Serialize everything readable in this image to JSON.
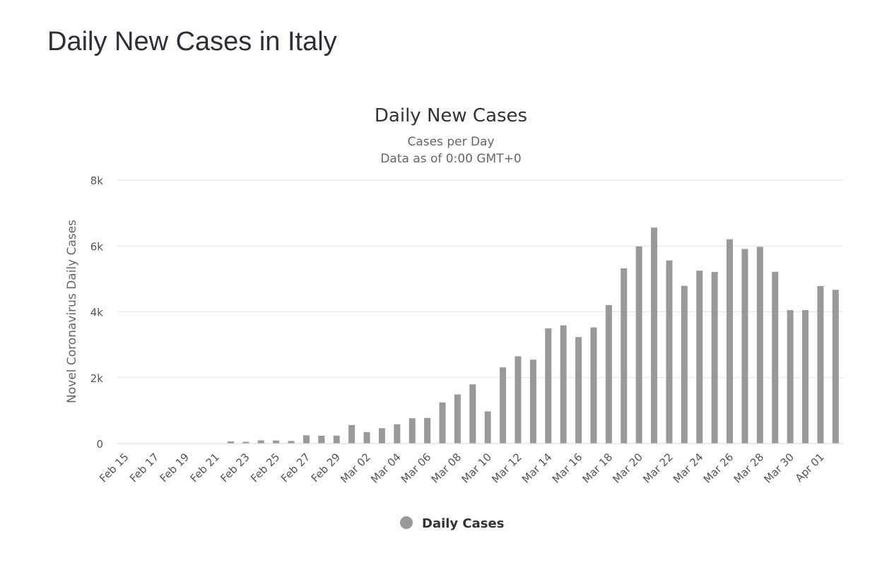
{
  "page": {
    "heading": "Daily New Cases in Italy"
  },
  "chart_data": {
    "type": "bar",
    "title": "Daily New Cases",
    "subtitle": [
      "Cases per Day",
      "Data as of 0:00 GMT+0"
    ],
    "xlabel": "",
    "ylabel": "Novel Coronavirus Daily Cases",
    "ylim": [
      0,
      8000
    ],
    "yticks": [
      0,
      2000,
      4000,
      6000,
      8000
    ],
    "ytick_labels": [
      "0",
      "2k",
      "4k",
      "6k",
      "8k"
    ],
    "grid": true,
    "legend": {
      "position": "bottom-center",
      "color": "#999999"
    },
    "categories": [
      "Feb 15",
      "Feb 16",
      "Feb 17",
      "Feb 18",
      "Feb 19",
      "Feb 20",
      "Feb 21",
      "Feb 22",
      "Feb 23",
      "Feb 24",
      "Feb 25",
      "Feb 26",
      "Feb 27",
      "Feb 28",
      "Feb 29",
      "Mar 01",
      "Mar 02",
      "Mar 03",
      "Mar 04",
      "Mar 05",
      "Mar 06",
      "Mar 07",
      "Mar 08",
      "Mar 09",
      "Mar 10",
      "Mar 11",
      "Mar 12",
      "Mar 13",
      "Mar 14",
      "Mar 15",
      "Mar 16",
      "Mar 17",
      "Mar 18",
      "Mar 19",
      "Mar 20",
      "Mar 21",
      "Mar 22",
      "Mar 23",
      "Mar 24",
      "Mar 25",
      "Mar 26",
      "Mar 27",
      "Mar 28",
      "Mar 29",
      "Mar 30",
      "Mar 31",
      "Apr 01",
      "Apr 02"
    ],
    "tick_labels_every": 2,
    "series": [
      {
        "name": "Daily Cases",
        "color": "#999999",
        "values": [
          0,
          0,
          0,
          0,
          0,
          0,
          0,
          62,
          53,
          97,
          93,
          78,
          250,
          238,
          240,
          561,
          347,
          466,
          587,
          769,
          778,
          1247,
          1492,
          1797,
          977,
          2313,
          2651,
          2547,
          3497,
          3590,
          3233,
          3526,
          4207,
          5322,
          5986,
          6557,
          5560,
          4789,
          5249,
          5210,
          6203,
          5909,
          5974,
          5217,
          4050,
          4053,
          4782,
          4668
        ]
      }
    ]
  }
}
